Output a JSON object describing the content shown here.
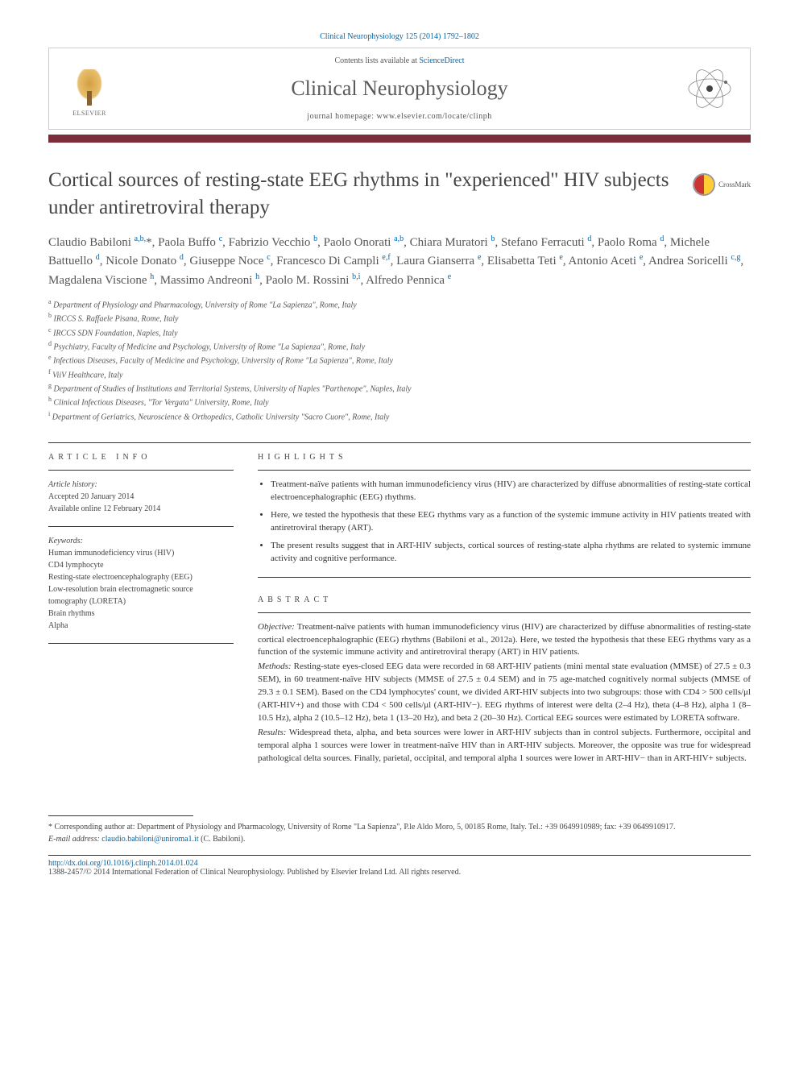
{
  "citation": "Clinical Neurophysiology 125 (2014) 1792–1802",
  "header": {
    "publisher": "ELSEVIER",
    "contents_prefix": "Contents lists available at ",
    "contents_link": "ScienceDirect",
    "journal": "Clinical Neurophysiology",
    "homepage_prefix": "journal homepage: ",
    "homepage_url": "www.elsevier.com/locate/clinph"
  },
  "title": "Cortical sources of resting-state EEG rhythms in \"experienced\" HIV subjects under antiretroviral therapy",
  "crossmark_label": "CrossMark",
  "authors_html": "Claudio Babiloni <sup>a,b,</sup><span class='star'>*</span>, Paola Buffo <sup>c</sup>, Fabrizio Vecchio <sup>b</sup>, Paolo Onorati <sup>a,b</sup>, Chiara Muratori <sup>b</sup>, Stefano Ferracuti <sup>d</sup>, Paolo Roma <sup>d</sup>, Michele Battuello <sup>d</sup>, Nicole Donato <sup>d</sup>, Giuseppe Noce <sup>c</sup>, Francesco Di Campli <sup>e,f</sup>, Laura Gianserra <sup>e</sup>, Elisabetta Teti <sup>e</sup>, Antonio Aceti <sup>e</sup>, Andrea Soricelli <sup>c,g</sup>, Magdalena Viscione <sup>h</sup>, Massimo Andreoni <sup>h</sup>, Paolo M. Rossini <sup>b,i</sup>, Alfredo Pennica <sup>e</sup>",
  "affiliations": [
    {
      "key": "a",
      "text": "Department of Physiology and Pharmacology, University of Rome \"La Sapienza\", Rome, Italy"
    },
    {
      "key": "b",
      "text": "IRCCS S. Raffaele Pisana, Rome, Italy"
    },
    {
      "key": "c",
      "text": "IRCCS SDN Foundation, Naples, Italy"
    },
    {
      "key": "d",
      "text": "Psychiatry, Faculty of Medicine and Psychology, University of Rome \"La Sapienza\", Rome, Italy"
    },
    {
      "key": "e",
      "text": "Infectious Diseases, Faculty of Medicine and Psychology, University of Rome \"La Sapienza\", Rome, Italy"
    },
    {
      "key": "f",
      "text": "ViiV Healthcare, Italy"
    },
    {
      "key": "g",
      "text": "Department of Studies of Institutions and Territorial Systems, University of Naples \"Parthenope\", Naples, Italy"
    },
    {
      "key": "h",
      "text": "Clinical Infectious Diseases, \"Tor Vergata\" University, Rome, Italy"
    },
    {
      "key": "i",
      "text": "Department of Geriatrics, Neuroscience & Orthopedics, Catholic University \"Sacro Cuore\", Rome, Italy"
    }
  ],
  "left": {
    "info_hdr": "article info",
    "history_label": "Article history:",
    "accepted": "Accepted 20 January 2014",
    "online": "Available online 12 February 2014",
    "keywords_label": "Keywords:",
    "keywords": [
      "Human immunodeficiency virus (HIV)",
      "CD4 lymphocyte",
      "Resting-state electroencephalography (EEG)",
      "Low-resolution brain electromagnetic source tomography (LORETA)",
      "Brain rhythms",
      "Alpha"
    ]
  },
  "right": {
    "highlights_hdr": "highlights",
    "highlights": [
      "Treatment-naïve patients with human immunodeficiency virus (HIV) are characterized by diffuse abnormalities of resting-state cortical electroencephalographic (EEG) rhythms.",
      "Here, we tested the hypothesis that these EEG rhythms vary as a function of the systemic immune activity in HIV patients treated with antiretroviral therapy (ART).",
      "The present results suggest that in ART-HIV subjects, cortical sources of resting-state alpha rhythms are related to systemic immune activity and cognitive performance."
    ],
    "abstract_hdr": "abstract",
    "abstract": {
      "objective_lbl": "Objective:",
      "objective": "Treatment-naïve patients with human immunodeficiency virus (HIV) are characterized by diffuse abnormalities of resting-state cortical electroencephalographic (EEG) rhythms (Babiloni et al., 2012a). Here, we tested the hypothesis that these EEG rhythms vary as a function of the systemic immune activity and antiretroviral therapy (ART) in HIV patients.",
      "methods_lbl": "Methods:",
      "methods": "Resting-state eyes-closed EEG data were recorded in 68 ART-HIV patients (mini mental state evaluation (MMSE) of 27.5 ± 0.3 SEM), in 60 treatment-naïve HIV subjects (MMSE of 27.5 ± 0.4 SEM) and in 75 age-matched cognitively normal subjects (MMSE of 29.3 ± 0.1 SEM). Based on the CD4 lymphocytes' count, we divided ART-HIV subjects into two subgroups: those with CD4 > 500 cells/μl (ART-HIV+) and those with CD4 < 500 cells/μl (ART-HIV−). EEG rhythms of interest were delta (2–4 Hz), theta (4–8 Hz), alpha 1 (8–10.5 Hz), alpha 2 (10.5–12 Hz), beta 1 (13–20 Hz), and beta 2 (20–30 Hz). Cortical EEG sources were estimated by LORETA software.",
      "results_lbl": "Results:",
      "results": "Widespread theta, alpha, and beta sources were lower in ART-HIV subjects than in control subjects. Furthermore, occipital and temporal alpha 1 sources were lower in treatment-naïve HIV than in ART-HIV subjects. Moreover, the opposite was true for widespread pathological delta sources. Finally, parietal, occipital, and temporal alpha 1 sources were lower in ART-HIV− than in ART-HIV+ subjects."
    }
  },
  "footer": {
    "corr_star": "*",
    "corr_text": "Corresponding author at: Department of Physiology and Pharmacology, University of Rome \"La Sapienza\", P.le Aldo Moro, 5, 00185 Rome, Italy. Tel.: +39 0649910989; fax: +39 0649910917.",
    "email_label": "E-mail address:",
    "email": "claudio.babiloni@uniroma1.it",
    "email_name": "(C. Babiloni).",
    "doi": "http://dx.doi.org/10.1016/j.clinph.2014.01.024",
    "copyright": "1388-2457/© 2014 International Federation of Clinical Neurophysiology. Published by Elsevier Ireland Ltd. All rights reserved."
  },
  "colors": {
    "accent": "#7b2d3a",
    "link": "#0066aa",
    "text": "#333333",
    "muted": "#555555"
  },
  "typography": {
    "title_fontsize": 25,
    "journal_fontsize": 26,
    "authors_fontsize": 15,
    "body_fontsize": 11,
    "small_fontsize": 10
  }
}
